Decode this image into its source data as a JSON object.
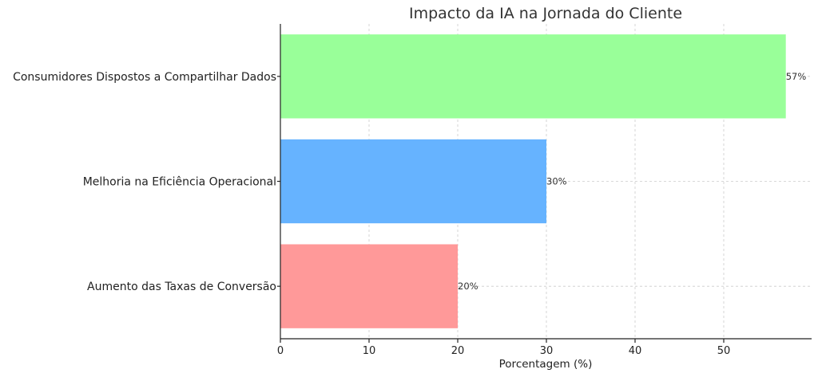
{
  "chart_data": {
    "type": "bar",
    "orientation": "horizontal",
    "title": "Impacto da IA na Jornada do Cliente",
    "xlabel": "Porcentagem (%)",
    "ylabel": "",
    "categories": [
      "Consumidores Dispostos a Compartilhar Dados",
      "Melhoria na Eficiência Operacional",
      "Aumento das Taxas de Conversão"
    ],
    "values": [
      57,
      30,
      20
    ],
    "data_labels": [
      "57%",
      "30%",
      "20%"
    ],
    "colors": [
      "#99ff99",
      "#66b3ff",
      "#ff9999"
    ],
    "xlim": [
      0,
      60
    ],
    "xticks": [
      0,
      10,
      20,
      30,
      40,
      50
    ],
    "grid": true
  }
}
